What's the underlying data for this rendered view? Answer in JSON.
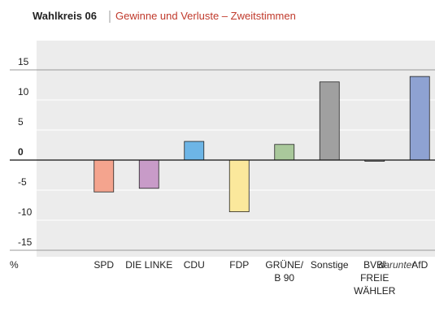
{
  "chart_data": {
    "type": "bar",
    "title": "Wahlkreis 06",
    "subtitle": "Gewinne und Verluste – Zweitstimmen",
    "y_label": "%",
    "annotation": "darunter",
    "categories": [
      "SPD",
      "DIE LINKE",
      "CDU",
      "FDP",
      "GRÜNE/\nB 90",
      "Sonstige",
      "BVB/\nFREIE\nWÄHLER",
      "AfD"
    ],
    "values": [
      -5.3,
      -4.7,
      3.1,
      -8.6,
      2.6,
      13.0,
      -0.2,
      13.9
    ],
    "colors": [
      "#f4a48e",
      "#c89bc8",
      "#6db5e6",
      "#fbe89c",
      "#a9c89b",
      "#a0a0a0",
      "#b0b0b0",
      "#8ea2d2"
    ],
    "ylim": [
      -17,
      19
    ],
    "yticks": [
      15,
      10,
      5,
      0,
      -5,
      -10,
      -15
    ],
    "grid": true
  }
}
